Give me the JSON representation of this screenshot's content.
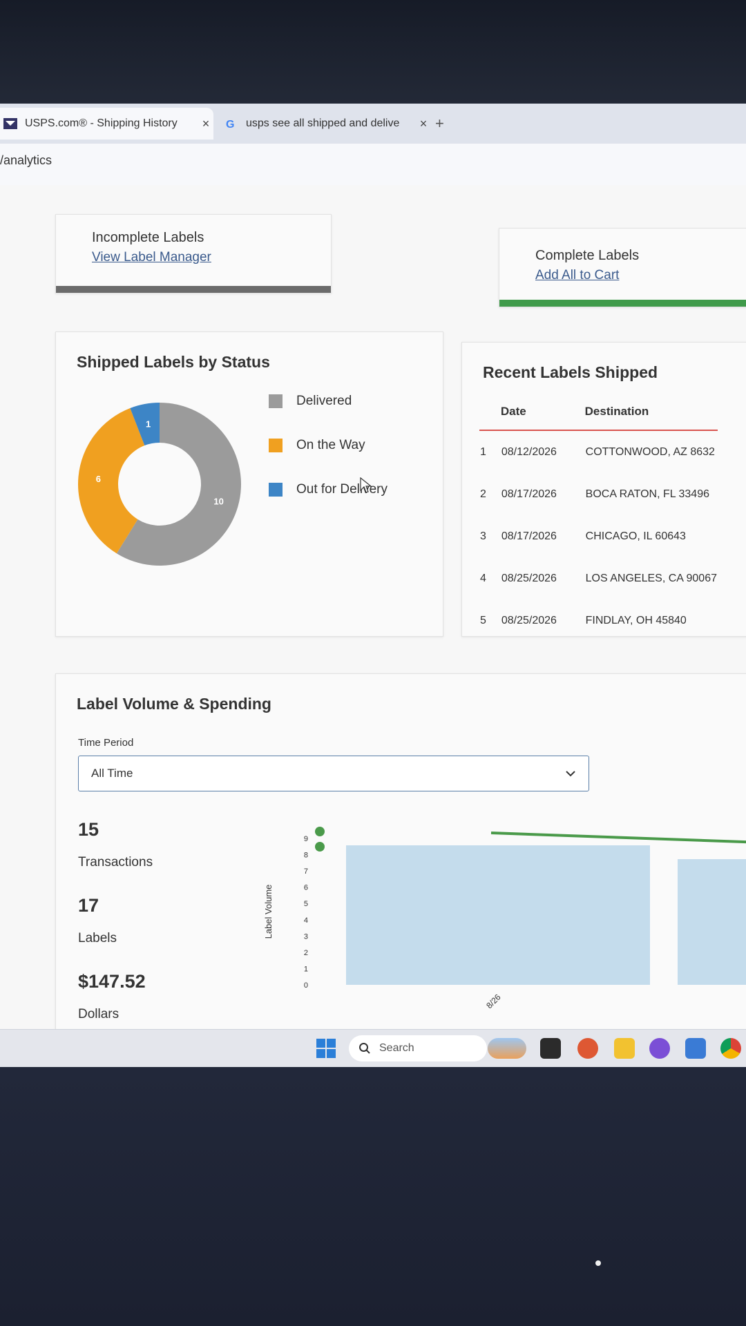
{
  "browser": {
    "tabs": [
      {
        "title": "USPS.com® - Shipping History",
        "close": "×"
      },
      {
        "title": "usps see all shipped and delive",
        "close": "×"
      }
    ],
    "new_tab": "+",
    "url": "/analytics"
  },
  "incomplete_labels": {
    "heading": "Incomplete Labels",
    "link": "View Label Manager"
  },
  "complete_labels": {
    "heading": "Complete Labels",
    "link": "Add All to Cart"
  },
  "status_chart": {
    "title": "Shipped Labels by Status",
    "legend": [
      {
        "label": "Delivered",
        "color": "#9b9b9b"
      },
      {
        "label": "On the Way",
        "color": "#f0a020"
      },
      {
        "label": "Out for Delivery",
        "color": "#3d85c6"
      }
    ]
  },
  "chart_data": {
    "type": "pie",
    "style": "donut",
    "title": "Shipped Labels by Status",
    "slices": [
      {
        "label": "Delivered",
        "value": 10,
        "color": "#9b9b9b"
      },
      {
        "label": "On the Way",
        "value": 6,
        "color": "#f0a020"
      },
      {
        "label": "Out for Delivery",
        "value": 1,
        "color": "#3d85c6"
      }
    ],
    "legend_position": "right"
  },
  "recent_labels": {
    "title": "Recent Labels Shipped",
    "columns": [
      "",
      "Date",
      "Destination"
    ],
    "rows": [
      {
        "n": "1",
        "date": "08/12/2026",
        "destination": "COTTONWOOD, AZ 8632"
      },
      {
        "n": "2",
        "date": "08/17/2026",
        "destination": "BOCA RATON, FL 33496"
      },
      {
        "n": "3",
        "date": "08/17/2026",
        "destination": "CHICAGO, IL 60643"
      },
      {
        "n": "4",
        "date": "08/25/2026",
        "destination": "LOS ANGELES, CA 90067"
      },
      {
        "n": "5",
        "date": "08/25/2026",
        "destination": "FINDLAY, OH 45840"
      }
    ]
  },
  "volume": {
    "title": "Label Volume & Spending",
    "time_period_label": "Time Period",
    "time_period_value": "All Time",
    "stats": [
      {
        "value": "15",
        "label": "Transactions"
      },
      {
        "value": "17",
        "label": "Labels"
      },
      {
        "value": "$147.52",
        "label": "Dollars"
      }
    ],
    "y_axis_label": "Label Volume",
    "y_ticks": [
      "0",
      "1",
      "2",
      "3",
      "4",
      "5",
      "6",
      "7",
      "8",
      "9"
    ],
    "x_tick": "8/26",
    "bar_color": "#c4dcec",
    "line_color": "#4a9a4a"
  },
  "taskbar": {
    "search_placeholder": "Search"
  }
}
